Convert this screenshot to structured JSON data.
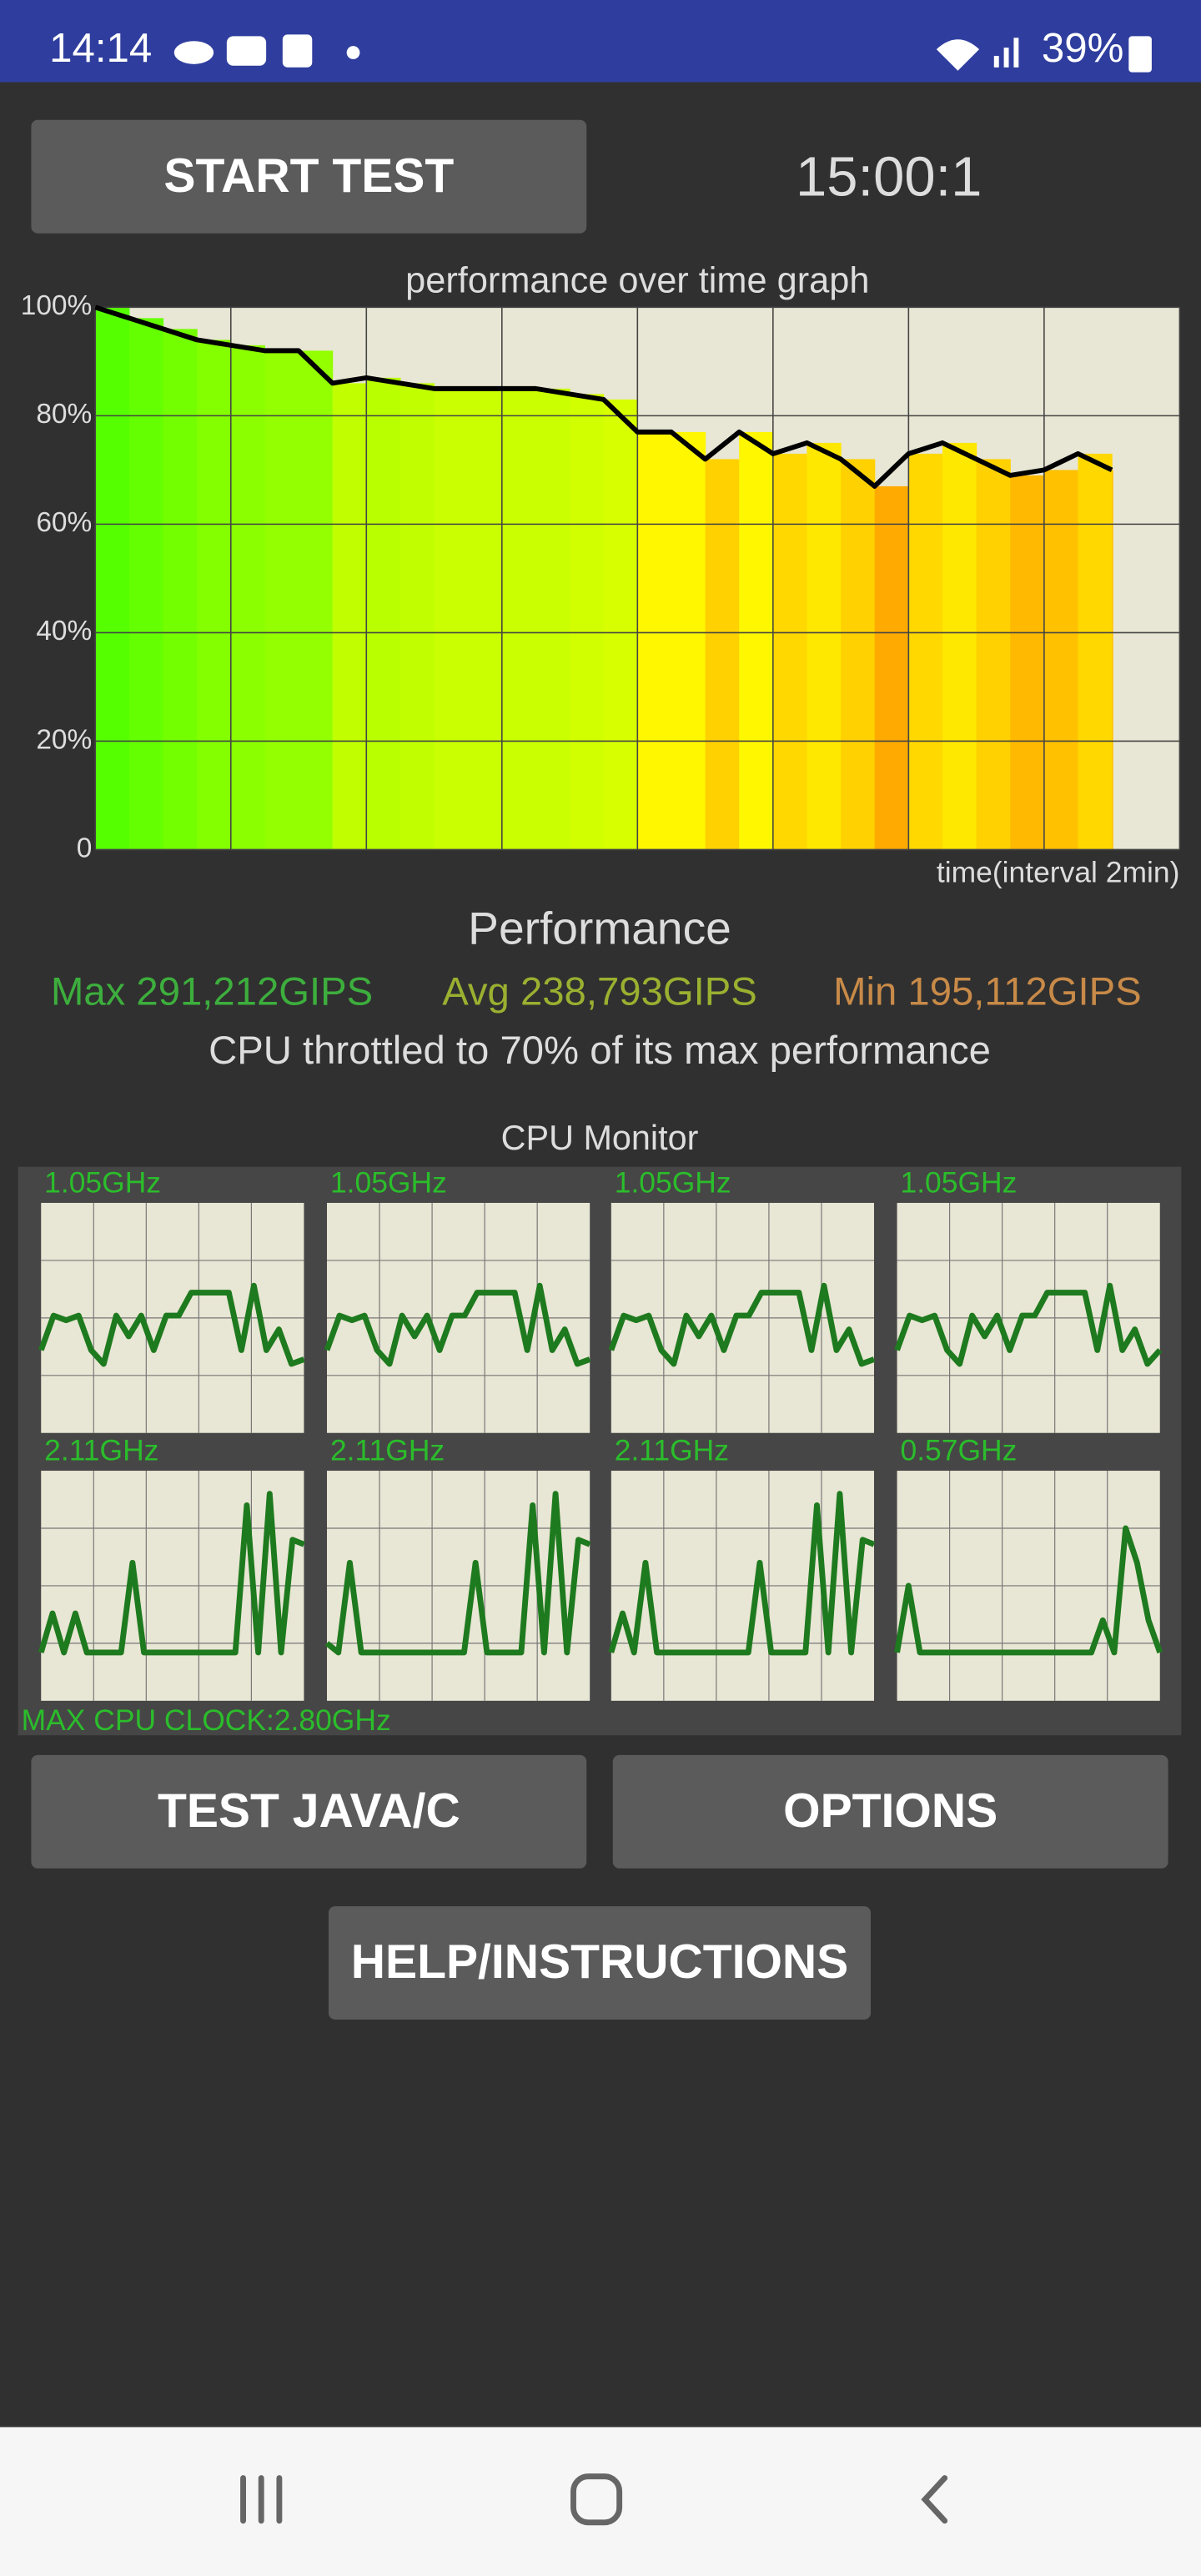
{
  "status_bar": {
    "time": "14:14",
    "battery": "39%"
  },
  "start_button": "START TEST",
  "timer": "15:00:1",
  "chart_data": {
    "type": "area",
    "title": "performance over time graph",
    "x_label": "time(interval 2min)",
    "x": [
      0,
      0.5,
      1,
      1.5,
      2,
      2.5,
      3,
      3.5,
      4,
      4.5,
      5,
      5.5,
      6,
      6.5,
      7,
      7.5,
      8,
      8.5,
      9,
      9.5,
      10,
      10.5,
      11,
      11.5,
      12,
      12.5,
      13,
      13.5,
      14,
      14.5,
      15
    ],
    "values": [
      100,
      98,
      96,
      94,
      93,
      92,
      92,
      86,
      87,
      86,
      85,
      85,
      85,
      85,
      84,
      83,
      77,
      77,
      72,
      77,
      73,
      75,
      72,
      67,
      73,
      75,
      72,
      69,
      70,
      73,
      70
    ],
    "xlim": [
      0,
      16
    ],
    "xticks": [
      0,
      2,
      4,
      6,
      8,
      10,
      12,
      14,
      16
    ],
    "ylim": [
      0,
      100
    ],
    "yticks": [
      0,
      {
        "value": 20,
        "label": "20%"
      },
      {
        "value": 40,
        "label": "40%"
      },
      {
        "value": 60,
        "label": "60%"
      },
      {
        "value": 80,
        "label": "80%"
      },
      {
        "value": 100,
        "label": "100%"
      }
    ],
    "grid": true,
    "color": "#000000"
  },
  "performance": {
    "title": "Performance",
    "max": "Max 291,212GIPS",
    "avg": "Avg 238,793GIPS",
    "min": "Min 195,112GIPS",
    "summary": "CPU throttled to 70% of its max performance"
  },
  "cpu_monitor": {
    "title": "CPU Monitor",
    "max_clock": "MAX CPU CLOCK:2.80GHz",
    "cores": [
      {
        "clock": "1.05GHz",
        "values": [
          36,
          51,
          49,
          51,
          36,
          30,
          51,
          42,
          51,
          36,
          51,
          51,
          61,
          61,
          61,
          61,
          36,
          64,
          36,
          45,
          30,
          32
        ]
      },
      {
        "clock": "1.05GHz",
        "values": [
          36,
          51,
          49,
          51,
          36,
          30,
          51,
          42,
          51,
          36,
          51,
          51,
          61,
          61,
          61,
          61,
          36,
          64,
          36,
          45,
          30,
          32
        ]
      },
      {
        "clock": "1.05GHz",
        "values": [
          36,
          51,
          49,
          51,
          36,
          30,
          51,
          42,
          51,
          36,
          51,
          51,
          61,
          61,
          61,
          61,
          36,
          64,
          36,
          45,
          30,
          32
        ]
      },
      {
        "clock": "1.05GHz",
        "values": [
          36,
          51,
          49,
          51,
          36,
          30,
          51,
          42,
          51,
          36,
          51,
          51,
          61,
          61,
          61,
          61,
          36,
          64,
          36,
          45,
          30,
          36
        ]
      },
      {
        "clock": "2.11GHz",
        "values": [
          21,
          38,
          21,
          38,
          21,
          21,
          21,
          21,
          60,
          21,
          21,
          21,
          21,
          21,
          21,
          21,
          21,
          21,
          85,
          21,
          90,
          21,
          70,
          68
        ]
      },
      {
        "clock": "2.11GHz",
        "values": [
          25,
          21,
          60,
          21,
          21,
          21,
          21,
          21,
          21,
          21,
          21,
          21,
          21,
          60,
          21,
          21,
          21,
          21,
          85,
          21,
          90,
          21,
          70,
          68
        ]
      },
      {
        "clock": "2.11GHz",
        "values": [
          21,
          38,
          21,
          60,
          21,
          21,
          21,
          21,
          21,
          21,
          21,
          21,
          21,
          60,
          21,
          21,
          21,
          21,
          85,
          21,
          90,
          21,
          70,
          68
        ]
      },
      {
        "clock": "0.57GHz",
        "values": [
          21,
          50,
          21,
          21,
          21,
          21,
          21,
          21,
          21,
          21,
          21,
          21,
          21,
          21,
          21,
          21,
          21,
          21,
          35,
          21,
          75,
          60,
          35,
          21
        ]
      }
    ]
  },
  "buttons": [
    "TEST JAVA/C",
    "OPTIONS",
    "HELP/INSTRUCTIONS"
  ]
}
